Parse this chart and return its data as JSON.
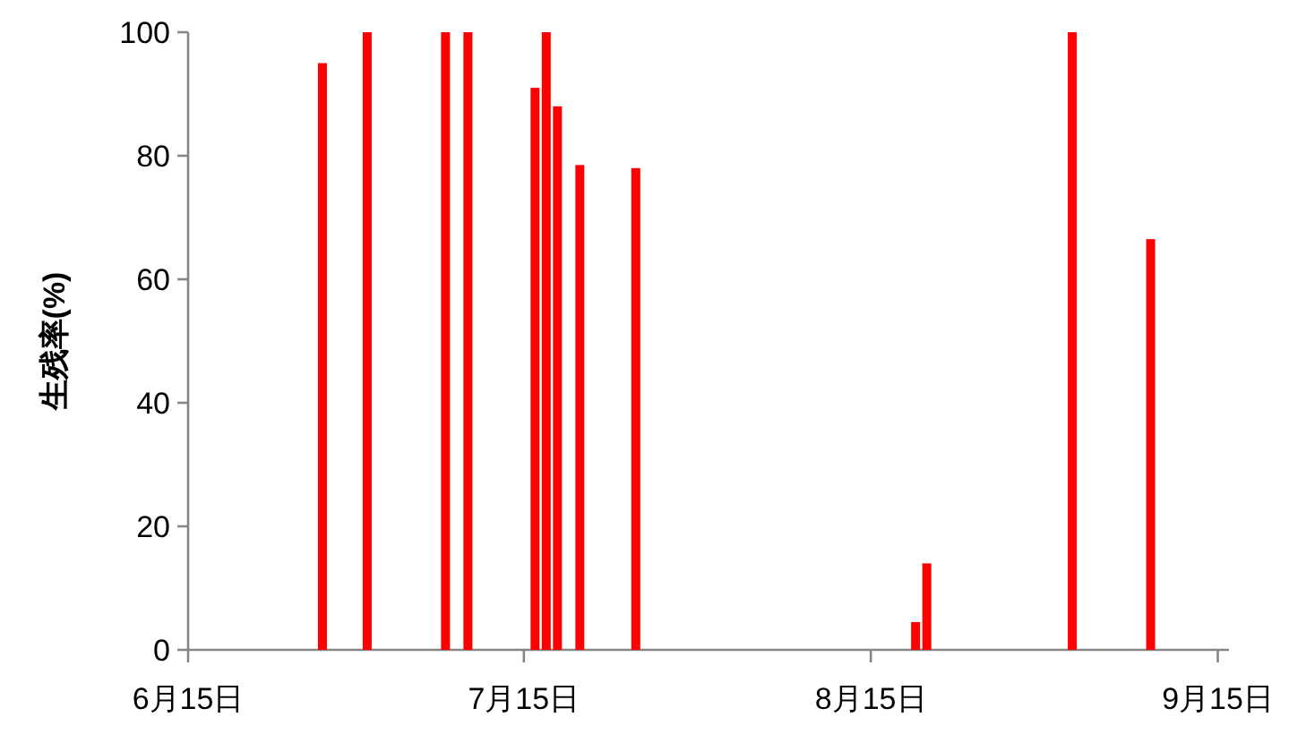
{
  "chart_data": {
    "type": "bar",
    "ylabel": "生残率(%)",
    "x": [
      "--06-27",
      "--07-01",
      "--07-08",
      "--07-10",
      "--07-16",
      "--07-17",
      "--07-18",
      "--07-20",
      "--07-25",
      "--08-19",
      "--08-20",
      "--09-02",
      "--09-09"
    ],
    "values": [
      95,
      100,
      100,
      100,
      91,
      100,
      88,
      78.5,
      78,
      4.5,
      14,
      100,
      66.5
    ],
    "color": "#ff0000",
    "xlim": [
      "--06-15",
      "--09-16"
    ],
    "xticks": [
      {
        "value": "--06-15",
        "label": "6月15日"
      },
      {
        "value": "--07-15",
        "label": "7月15日"
      },
      {
        "value": "--08-15",
        "label": "8月15日"
      },
      {
        "value": "--09-15",
        "label": "9月15日"
      }
    ],
    "ylim": [
      0,
      100
    ],
    "yticks": [
      0,
      20,
      40,
      60,
      80,
      100
    ],
    "grid": false
  }
}
